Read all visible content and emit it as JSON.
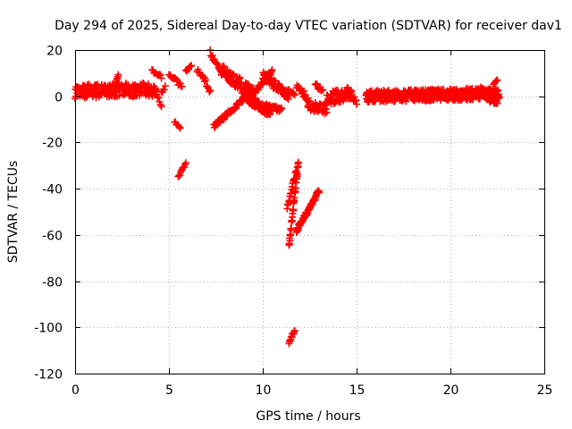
{
  "chart_data": {
    "type": "scatter",
    "title": "Day 294 of 2025, Sidereal Day-to-day VTEC variation (SDTVAR) for receiver dav1",
    "xlabel": "GPS time / hours",
    "ylabel": "SDTVAR / TECUs",
    "xlim": [
      0,
      25
    ],
    "ylim": [
      -120,
      20
    ],
    "xticks": [
      0,
      5,
      10,
      15,
      20,
      25
    ],
    "yticks": [
      -120,
      -100,
      -80,
      -60,
      -40,
      -20,
      0,
      20
    ],
    "xtick_labels": [
      "0",
      "5",
      "10",
      "15",
      "20",
      "25"
    ],
    "ytick_labels": [
      "-120",
      "-100",
      "-80",
      "-60",
      "-40",
      "-20",
      "0",
      "20"
    ],
    "grid": true,
    "marker": "+",
    "marker_color": "#ff0000",
    "series": [
      {
        "name": "dav1",
        "segments": [
          {
            "x0": 0.0,
            "x1": 4.3,
            "y0": 2,
            "y1": 3,
            "jitter": 3,
            "step": 0.02
          },
          {
            "x0": 2.1,
            "x1": 2.3,
            "y0": 3,
            "y1": 10,
            "jitter": 1,
            "step": 0.03
          },
          {
            "x0": 4.1,
            "x1": 4.6,
            "y0": 11,
            "y1": 8,
            "jitter": 1,
            "step": 0.05
          },
          {
            "x0": 4.3,
            "x1": 4.6,
            "y0": 2,
            "y1": -4,
            "jitter": 1,
            "step": 0.05
          },
          {
            "x0": 4.6,
            "x1": 4.8,
            "y0": 2,
            "y1": 4,
            "jitter": 1,
            "step": 0.05
          },
          {
            "x0": 5.0,
            "x1": 5.7,
            "y0": 10,
            "y1": 4,
            "jitter": 1,
            "step": 0.05
          },
          {
            "x0": 5.9,
            "x1": 6.2,
            "y0": 11,
            "y1": 13,
            "jitter": 0.5,
            "step": 0.05
          },
          {
            "x0": 6.5,
            "x1": 6.9,
            "y0": 11,
            "y1": 8,
            "jitter": 1,
            "step": 0.05
          },
          {
            "x0": 6.9,
            "x1": 7.2,
            "y0": 7,
            "y1": 2,
            "jitter": 1,
            "step": 0.05
          },
          {
            "x0": 7.2,
            "x1": 7.8,
            "y0": 19,
            "y1": 10,
            "jitter": 1,
            "step": 0.04
          },
          {
            "x0": 5.3,
            "x1": 5.6,
            "y0": -11,
            "y1": -14,
            "jitter": 0.5,
            "step": 0.05
          },
          {
            "x0": 5.5,
            "x1": 5.9,
            "y0": -35,
            "y1": -29,
            "jitter": 0.5,
            "step": 0.04
          },
          {
            "x0": 7.4,
            "x1": 9.5,
            "y0": -13,
            "y1": 3,
            "jitter": 1,
            "step": 0.03
          },
          {
            "x0": 7.8,
            "x1": 9.6,
            "y0": 11,
            "y1": 0,
            "jitter": 3,
            "step": 0.02
          },
          {
            "x0": 9.5,
            "x1": 10.5,
            "y0": 1,
            "y1": 11,
            "jitter": 1,
            "step": 0.03
          },
          {
            "x0": 9.6,
            "x1": 11.0,
            "y0": -3,
            "y1": -6,
            "jitter": 1,
            "step": 0.03
          },
          {
            "x0": 10.0,
            "x1": 11.4,
            "y0": 9,
            "y1": 0,
            "jitter": 2,
            "step": 0.03
          },
          {
            "x0": 9.2,
            "x1": 10.4,
            "y0": -2,
            "y1": -8,
            "jitter": 1,
            "step": 0.03
          },
          {
            "x0": 11.0,
            "x1": 11.7,
            "y0": 3,
            "y1": 1,
            "jitter": 1,
            "step": 0.05
          },
          {
            "x0": 11.4,
            "x1": 11.9,
            "y0": -65,
            "y1": -28,
            "jitter": 1.5,
            "step": 0.012
          },
          {
            "x0": 11.3,
            "x1": 11.8,
            "y0": -48,
            "y1": -32,
            "jitter": 1,
            "step": 0.03
          },
          {
            "x0": 11.8,
            "x1": 13.0,
            "y0": -58,
            "y1": -41,
            "jitter": 1,
            "step": 0.02
          },
          {
            "x0": 11.4,
            "x1": 11.7,
            "y0": -107,
            "y1": -101,
            "jitter": 0.8,
            "step": 0.03
          },
          {
            "x0": 11.8,
            "x1": 12.5,
            "y0": 5,
            "y1": -3,
            "jitter": 2,
            "step": 0.03
          },
          {
            "x0": 12.4,
            "x1": 13.4,
            "y0": -4,
            "y1": -6,
            "jitter": 2,
            "step": 0.03
          },
          {
            "x0": 12.8,
            "x1": 13.2,
            "y0": 5,
            "y1": 2,
            "jitter": 1,
            "step": 0.05
          },
          {
            "x0": 13.3,
            "x1": 14.7,
            "y0": -1,
            "y1": 1,
            "jitter": 3,
            "step": 0.02
          },
          {
            "x0": 14.5,
            "x1": 15.0,
            "y0": 3,
            "y1": -2,
            "jitter": 2,
            "step": 0.04
          },
          {
            "x0": 15.5,
            "x1": 22.6,
            "y0": 0,
            "y1": 1,
            "jitter": 2.5,
            "step": 0.015
          },
          {
            "x0": 21.5,
            "x1": 22.5,
            "y0": 3,
            "y1": -3,
            "jitter": 2,
            "step": 0.03
          },
          {
            "x0": 22.3,
            "x1": 22.5,
            "y0": 5,
            "y1": 7,
            "jitter": 0.5,
            "step": 0.05
          }
        ]
      }
    ]
  }
}
